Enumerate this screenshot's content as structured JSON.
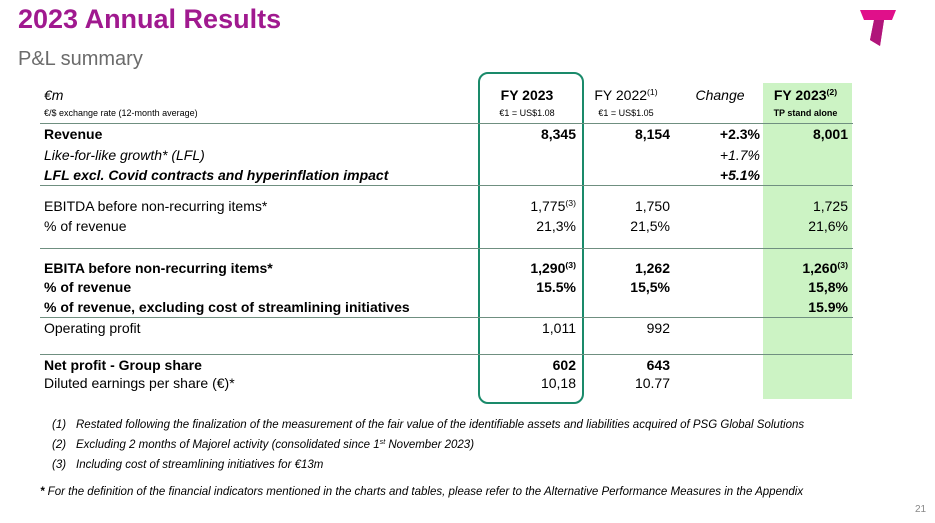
{
  "header": {
    "title": "2023 Annual Results",
    "subtitle": "P&L summary"
  },
  "table": {
    "unit": "€m",
    "exchange_label": "€/$ exchange rate (12-month average)",
    "columns": [
      {
        "label": "FY 2023",
        "note": "€1 = US$1.08"
      },
      {
        "label": "FY 2022",
        "sup": "(1)",
        "note": "€1 = US$1.05"
      },
      {
        "label": "Change"
      },
      {
        "label": "FY 2023",
        "sup": "(2)",
        "note": "TP stand alone"
      }
    ],
    "rows": [
      {
        "label": "Revenue",
        "cells": [
          "8,345",
          "8,154",
          "+2.3%",
          "8,001"
        ]
      },
      {
        "label": "Like-for-like growth* (LFL)",
        "cells": [
          null,
          null,
          "+1.7%",
          null
        ]
      },
      {
        "label": "LFL excl. Covid contracts and hyperinflation impact",
        "cells": [
          null,
          null,
          "+5.1%",
          null
        ]
      },
      {
        "label": "EBITDA before non-recurring items*",
        "cells": [
          {
            "text": "1,775",
            "sup": "(3)"
          },
          "1,750",
          null,
          "1,725"
        ]
      },
      {
        "label": "% of revenue",
        "cells": [
          "21,3%",
          "21,5%",
          null,
          "21,6%"
        ]
      },
      {
        "label": "EBITA before non-recurring items*",
        "cells": [
          {
            "text": "1,290",
            "sup": "(3)"
          },
          "1,262",
          null,
          {
            "text": "1,260",
            "sup": "(3)"
          }
        ]
      },
      {
        "label": "% of revenue",
        "cells": [
          "15.5%",
          "15,5%",
          null,
          "15,8%"
        ]
      },
      {
        "label": "% of revenue, excluding cost of streamlining initiatives",
        "cells": [
          null,
          null,
          null,
          "15.9%"
        ]
      },
      {
        "label": "Operating profit",
        "cells": [
          "1,011",
          "992",
          null,
          null
        ]
      },
      {
        "label": "Net profit - Group share",
        "cells": [
          "602",
          "643",
          null,
          null
        ]
      },
      {
        "label": "Diluted earnings per share (€)*",
        "cells": [
          "10,18",
          "10.77",
          null,
          null
        ]
      }
    ]
  },
  "footnotes": [
    {
      "marker": "(1)",
      "text": "Restated following the finalization of the measurement of the fair value of the identifiable assets and liabilities acquired of PSG Global Solutions"
    },
    {
      "marker": "(2)",
      "text": "Excluding 2 months of Majorel activity (consolidated since 1",
      "sup": "st",
      "tail": " November 2023)"
    },
    {
      "marker": "(3)",
      "text": "Including cost of streamlining initiatives for €13m"
    }
  ],
  "definition": {
    "marker": "*",
    "text": " For the definition of the financial indicators mentioned in the charts and tables, please refer to the Alternative Performance Measures in the Appendix"
  },
  "page_number": "21"
}
